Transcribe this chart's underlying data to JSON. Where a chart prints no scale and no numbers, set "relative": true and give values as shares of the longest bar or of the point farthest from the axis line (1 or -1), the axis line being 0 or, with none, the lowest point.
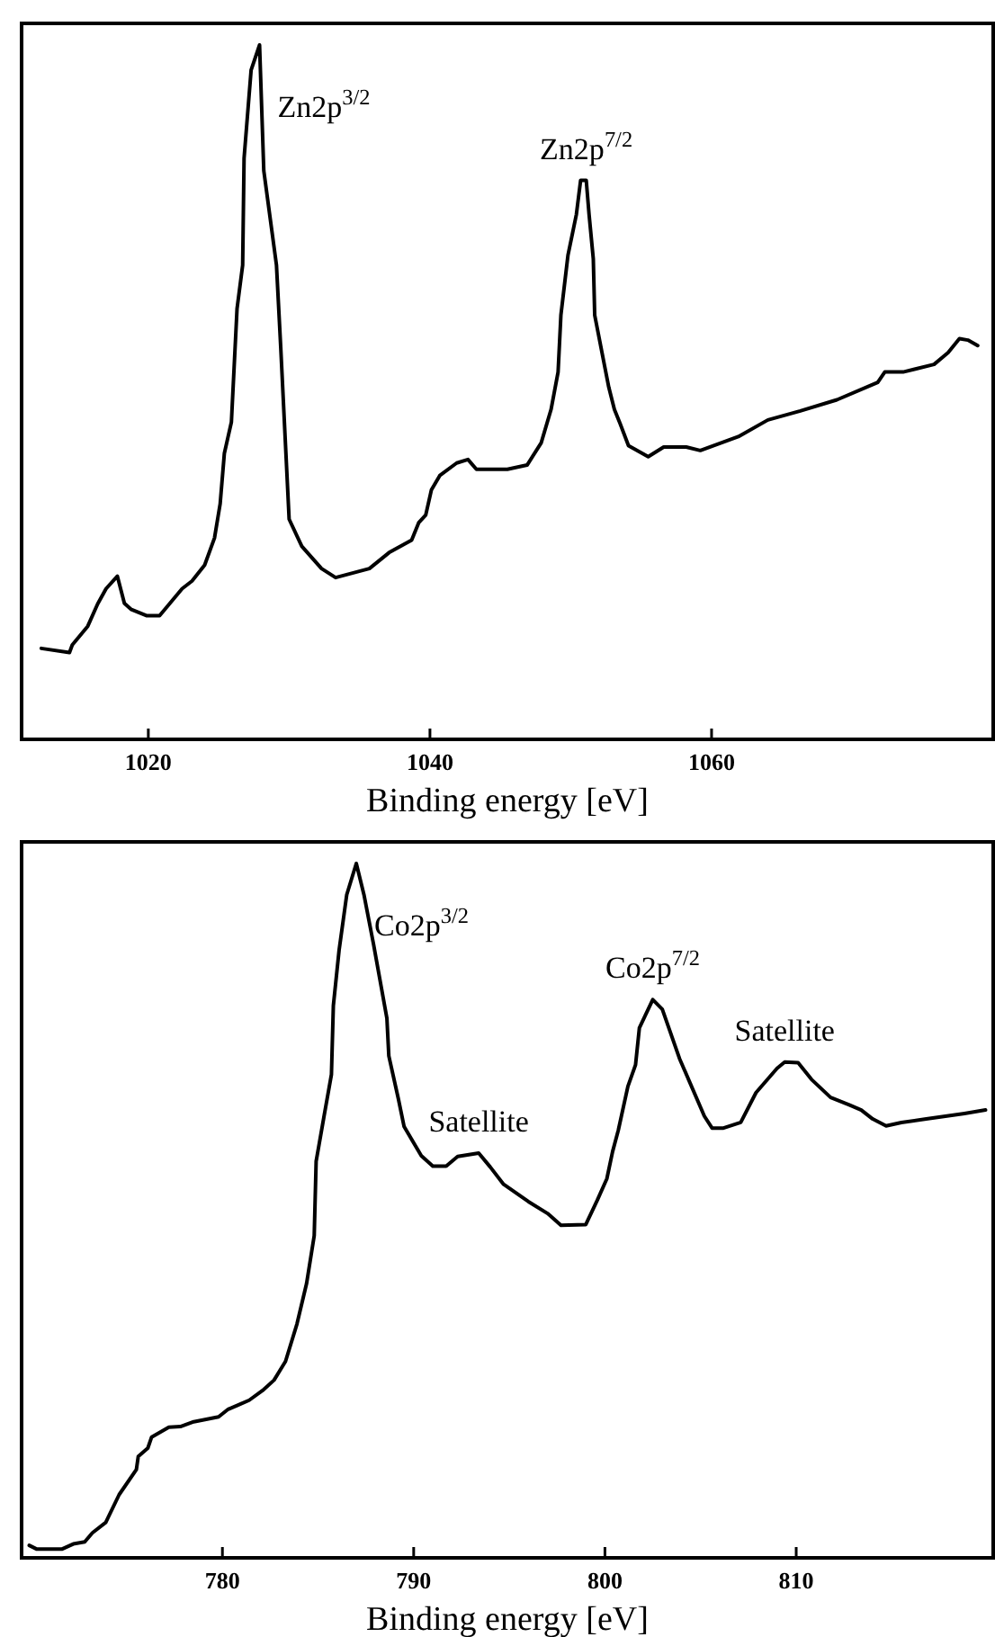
{
  "chart_data": [
    {
      "type": "line",
      "relative": true,
      "xlabel": "Binding energy [eV]",
      "xlim": [
        1011,
        1080
      ],
      "xticks": [
        1020,
        1040,
        1060
      ],
      "color": "#000000",
      "grid": false,
      "marker": "none",
      "line_style": "solid",
      "x": [
        1012.4,
        1014.4,
        1014.6,
        1015.7,
        1016.4,
        1017.0,
        1017.8,
        1018.3,
        1018.8,
        1019.9,
        1020.8,
        1022.4,
        1023.1,
        1024.0,
        1024.7,
        1025.1,
        1025.4,
        1025.9,
        1026.3,
        1026.7,
        1026.8,
        1027.3,
        1027.9,
        1028.2,
        1029.1,
        1029.4,
        1030.0,
        1030.9,
        1032.3,
        1033.3,
        1035.7,
        1037.1,
        1038.7,
        1039.2,
        1039.7,
        1040.1,
        1040.7,
        1041.9,
        1042.7,
        1043.3,
        1045.5,
        1046.9,
        1047.9,
        1048.6,
        1049.1,
        1049.3,
        1049.8,
        1050.4,
        1050.7,
        1051.1,
        1051.3,
        1051.6,
        1051.7,
        1052.4,
        1052.7,
        1053.1,
        1053.5,
        1054.1,
        1055.5,
        1056.6,
        1058.2,
        1059.2,
        1061.9,
        1064.0,
        1066.3,
        1068.9,
        1071.8,
        1072.3,
        1073.6,
        1075.8,
        1076.8,
        1077.6,
        1078.2,
        1078.9
      ],
      "values": [
        0.131,
        0.125,
        0.136,
        0.163,
        0.195,
        0.217,
        0.235,
        0.196,
        0.187,
        0.178,
        0.178,
        0.217,
        0.228,
        0.251,
        0.29,
        0.339,
        0.412,
        0.457,
        0.62,
        0.683,
        0.837,
        0.964,
        1,
        0.819,
        0.683,
        0.566,
        0.317,
        0.278,
        0.246,
        0.233,
        0.246,
        0.269,
        0.287,
        0.312,
        0.323,
        0.359,
        0.38,
        0.398,
        0.403,
        0.389,
        0.389,
        0.395,
        0.427,
        0.475,
        0.529,
        0.611,
        0.697,
        0.756,
        0.805,
        0.805,
        0.756,
        0.692,
        0.611,
        0.538,
        0.507,
        0.475,
        0.455,
        0.423,
        0.407,
        0.421,
        0.421,
        0.416,
        0.436,
        0.46,
        0.473,
        0.489,
        0.514,
        0.529,
        0.529,
        0.54,
        0.557,
        0.577,
        0.575,
        0.567
      ],
      "annotations": [
        {
          "text": "Zn2p$^{3/2}$",
          "x": 1027.9,
          "y": 1
        },
        {
          "text": "Zn2p$^{7/2}$",
          "x": 1051.1,
          "y": 0.805
        }
      ]
    },
    {
      "type": "line",
      "relative": true,
      "xlabel": "Binding energy [eV]",
      "xlim": [
        769.5,
        820.3
      ],
      "xticks": [
        780,
        790,
        800,
        810
      ],
      "color": "#000000",
      "grid": false,
      "marker": "none",
      "line_style": "solid",
      "x": [
        769.9,
        770.3,
        771.6,
        772.2,
        772.8,
        773.2,
        773.9,
        774.6,
        775.5,
        775.6,
        776.1,
        776.3,
        777.2,
        777.8,
        778.5,
        779.8,
        780.3,
        780.9,
        781.4,
        782.1,
        782.7,
        783.3,
        783.9,
        784.4,
        784.8,
        784.9,
        785.3,
        785.7,
        785.8,
        786.1,
        786.5,
        787.0,
        787.4,
        787.9,
        788.6,
        788.7,
        789.2,
        789.5,
        790.4,
        791.0,
        791.7,
        792.3,
        793.4,
        794.0,
        794.7,
        796.0,
        797.0,
        797.7,
        799.0,
        799.6,
        800.1,
        800.4,
        800.7,
        801.2,
        801.6,
        801.8,
        802.5,
        803.0,
        803.9,
        805.2,
        805.6,
        806.2,
        807.1,
        807.9,
        809.0,
        809.4,
        810.1,
        810.8,
        811.8,
        812.8,
        813.4,
        814.0,
        814.7,
        815.5,
        816.8,
        818.8,
        819.9
      ],
      "values": [
        0.018,
        0.0125,
        0.0125,
        0.02,
        0.023,
        0.036,
        0.051,
        0.091,
        0.127,
        0.146,
        0.158,
        0.174,
        0.188,
        0.189,
        0.196,
        0.203,
        0.214,
        0.221,
        0.227,
        0.241,
        0.256,
        0.283,
        0.337,
        0.395,
        0.464,
        0.571,
        0.634,
        0.696,
        0.795,
        0.875,
        0.955,
        1,
        0.955,
        0.884,
        0.777,
        0.723,
        0.661,
        0.621,
        0.579,
        0.564,
        0.564,
        0.578,
        0.583,
        0.563,
        0.538,
        0.513,
        0.496,
        0.479,
        0.48,
        0.515,
        0.546,
        0.585,
        0.616,
        0.679,
        0.71,
        0.763,
        0.804,
        0.79,
        0.719,
        0.636,
        0.619,
        0.619,
        0.627,
        0.67,
        0.705,
        0.714,
        0.713,
        0.689,
        0.663,
        0.652,
        0.645,
        0.632,
        0.622,
        0.627,
        0.632,
        0.64,
        0.645
      ],
      "annotations": [
        {
          "text": "Co2p$^{3/2}$",
          "x": 787.0,
          "y": 1
        },
        {
          "text": "Co2p$^{7/2}$",
          "x": 802.5,
          "y": 0.804
        },
        {
          "text": "Satellite",
          "x": 793.4,
          "y": 0.583
        },
        {
          "text": "Satellite",
          "x": 809.4,
          "y": 0.714
        }
      ]
    }
  ]
}
